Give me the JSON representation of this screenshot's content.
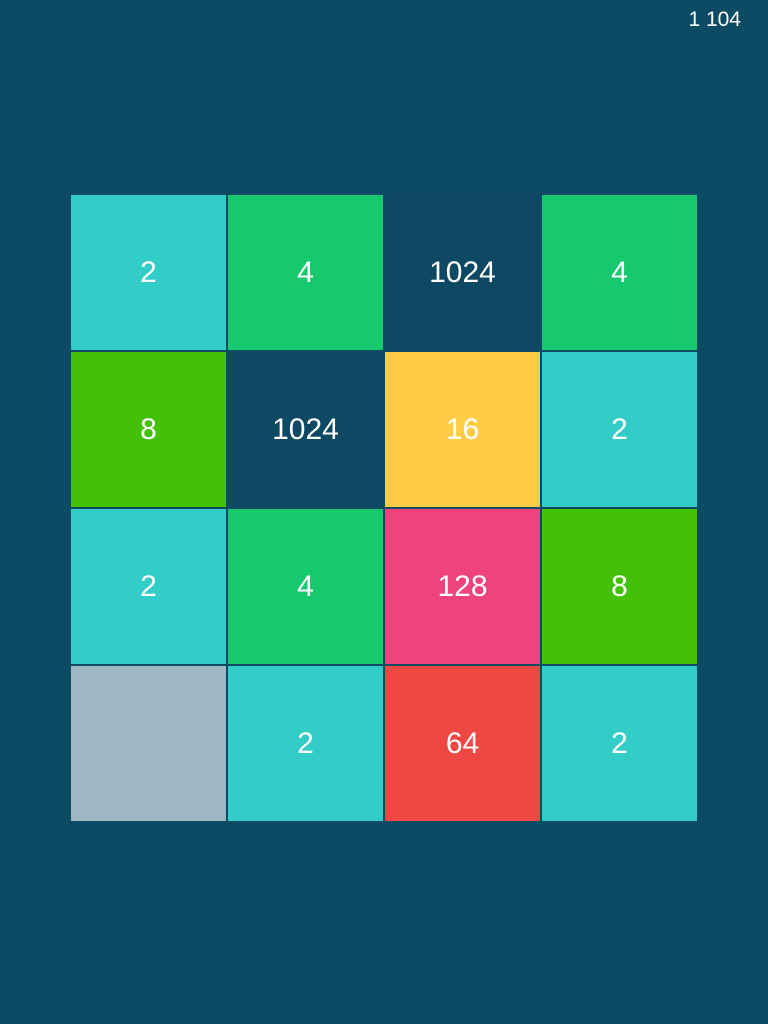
{
  "score": "1 104",
  "board": {
    "rows": [
      [
        {
          "value": 2,
          "color": "#33cdc7"
        },
        {
          "value": 4,
          "color": "#17c96e"
        },
        {
          "value": 1024,
          "color": "#0e4963"
        },
        {
          "value": 4,
          "color": "#17c96e"
        }
      ],
      [
        {
          "value": 8,
          "color": "#43c10a"
        },
        {
          "value": 1024,
          "color": "#0e4963"
        },
        {
          "value": 16,
          "color": "#ffcd45"
        },
        {
          "value": 2,
          "color": "#33cdc7"
        }
      ],
      [
        {
          "value": 2,
          "color": "#33cdc7"
        },
        {
          "value": 4,
          "color": "#17c96e"
        },
        {
          "value": 128,
          "color": "#ef437b"
        },
        {
          "value": 8,
          "color": "#43c10a"
        }
      ],
      [
        {
          "value": null,
          "color": "#9db8c2"
        },
        {
          "value": 2,
          "color": "#33cdc7"
        },
        {
          "value": 64,
          "color": "#ef4741"
        },
        {
          "value": 2,
          "color": "#33cdc7"
        }
      ]
    ]
  }
}
